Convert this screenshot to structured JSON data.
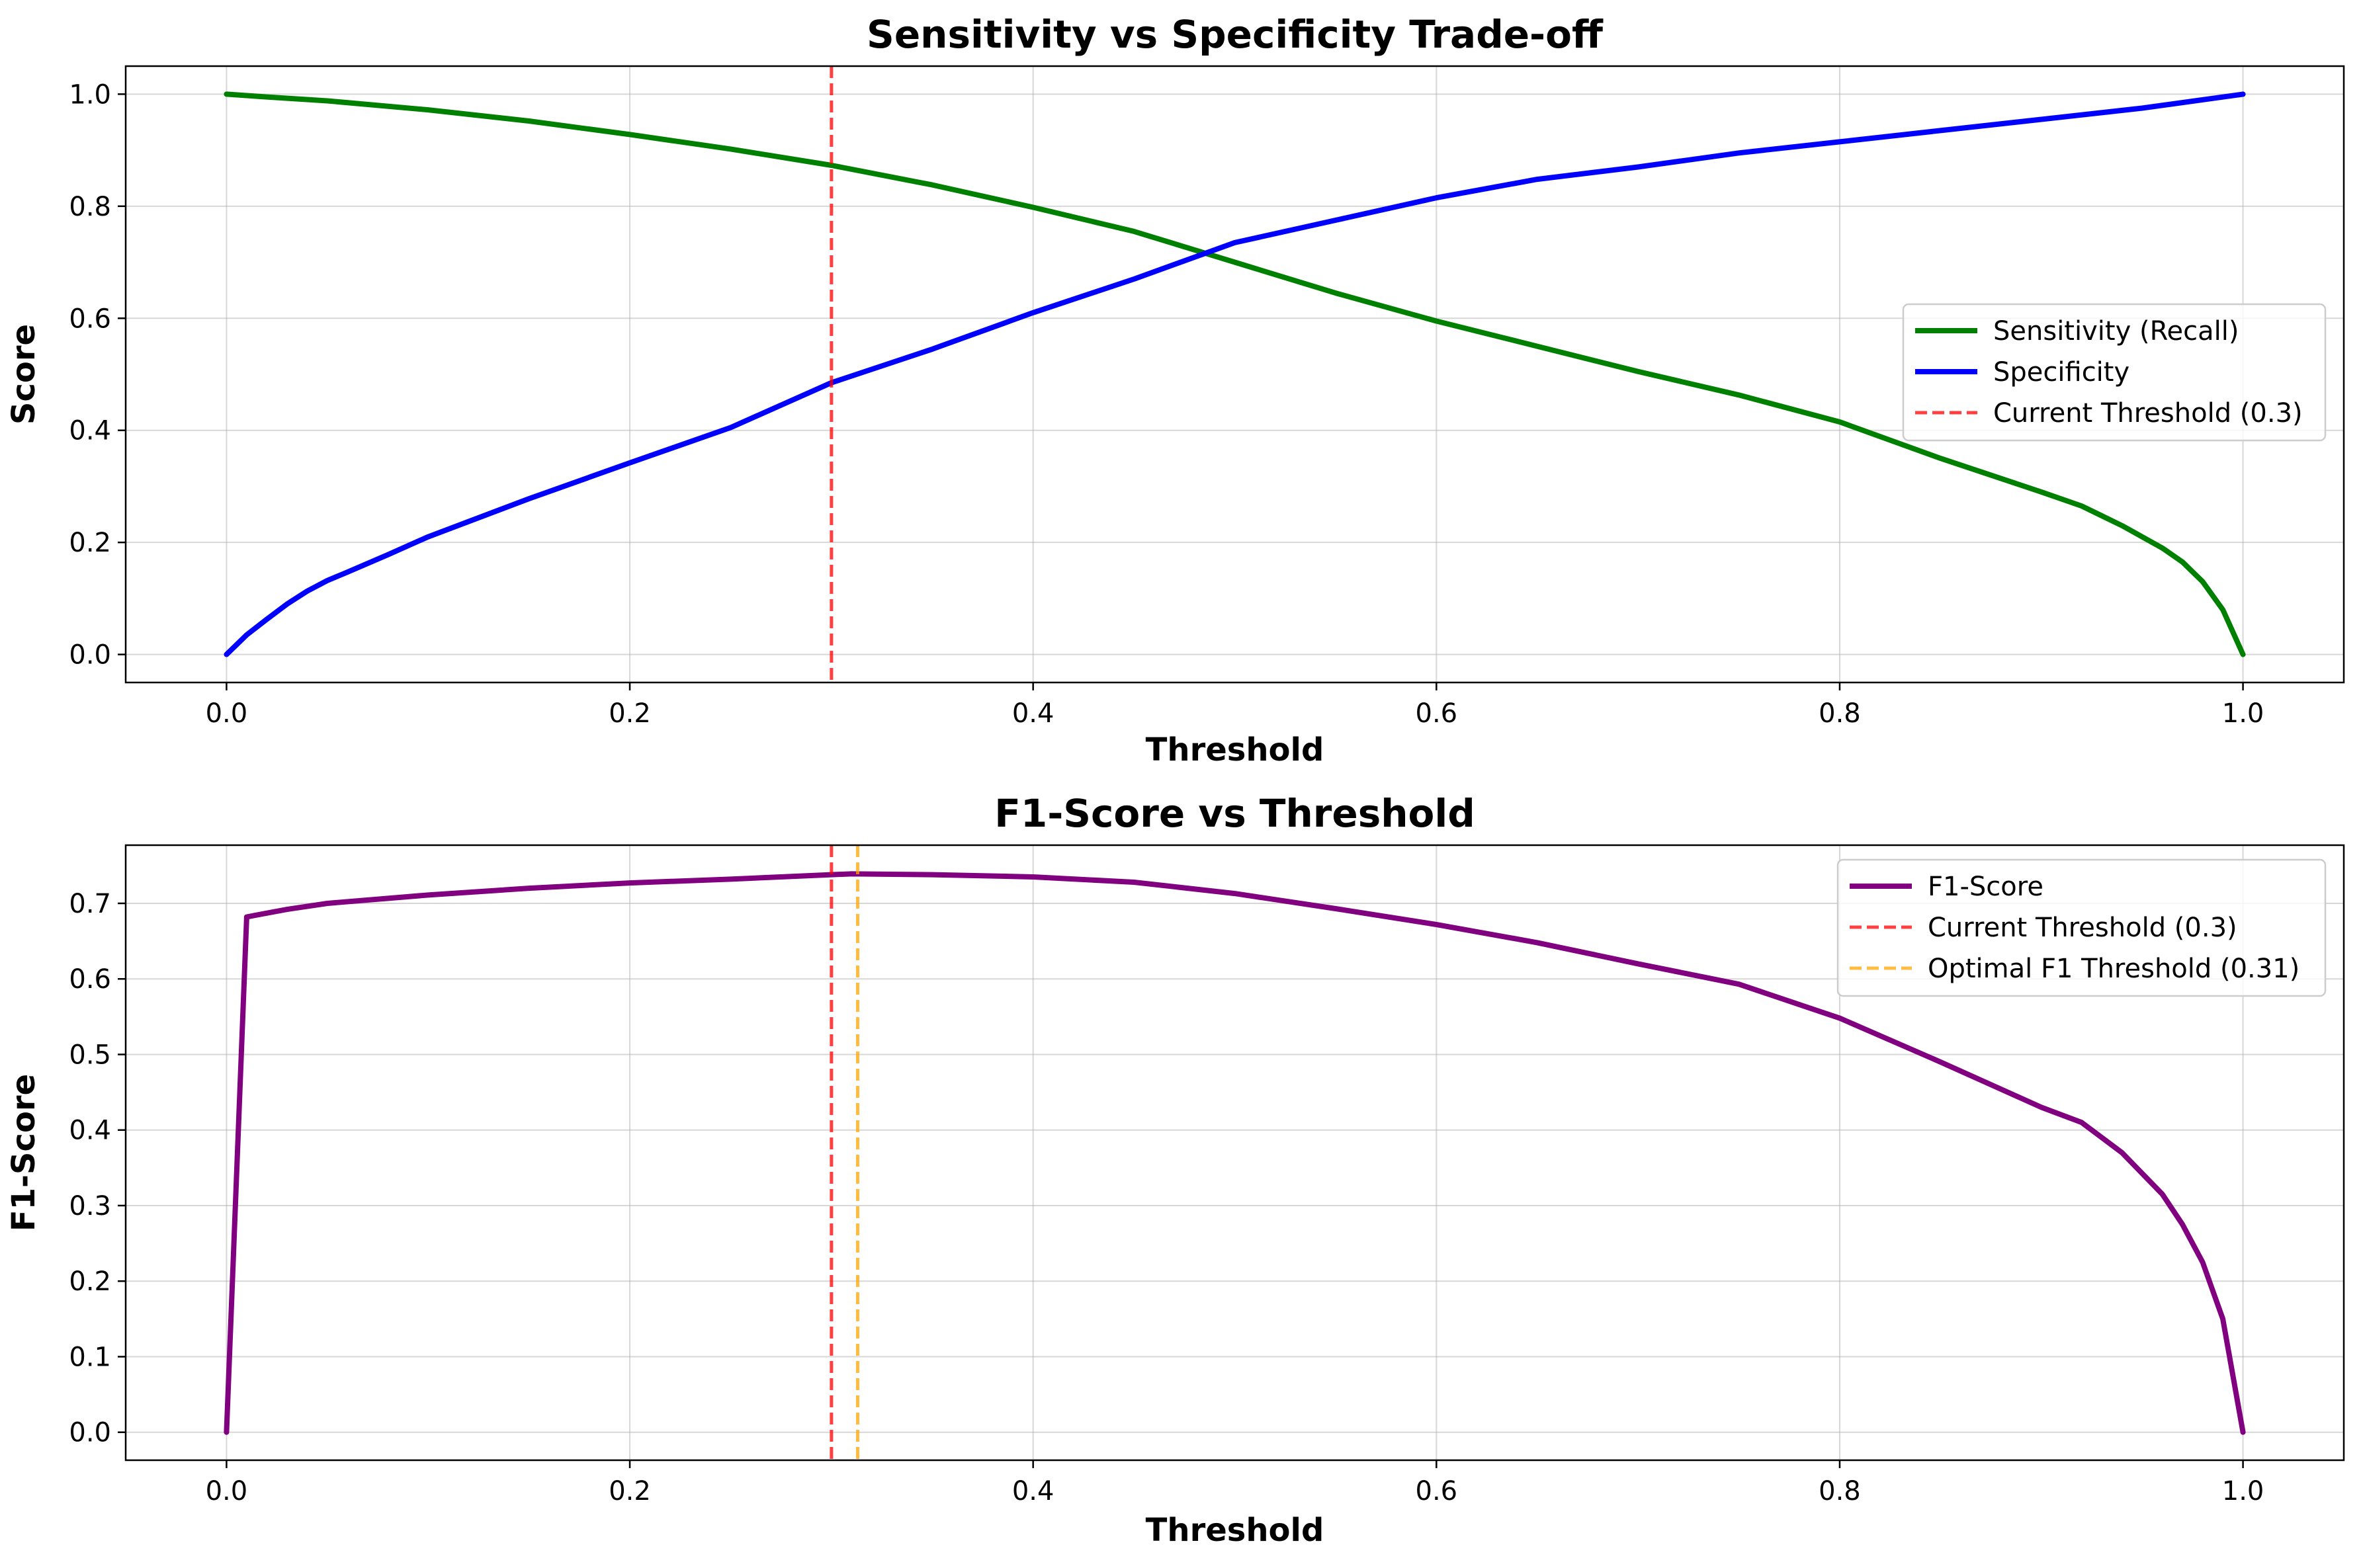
{
  "chart_data": [
    {
      "type": "line",
      "title": "Sensitivity vs Specificity Trade-off",
      "xlabel": "Threshold",
      "ylabel": "Score",
      "xlim": [
        -0.05,
        1.05
      ],
      "ylim": [
        -0.05,
        1.05
      ],
      "xticks": [
        0.0,
        0.2,
        0.4,
        0.6,
        0.8,
        1.0
      ],
      "xtick_labels": [
        "0.0",
        "0.2",
        "0.4",
        "0.6",
        "0.8",
        "1.0"
      ],
      "yticks": [
        0.0,
        0.2,
        0.4,
        0.6,
        0.8,
        1.0
      ],
      "ytick_labels": [
        "0.0",
        "0.2",
        "0.4",
        "0.6",
        "0.8",
        "1.0"
      ],
      "grid": true,
      "legend_position": "center-right",
      "series": [
        {
          "name": "Sensitivity (Recall)",
          "color": "#008000",
          "style": "solid",
          "x": [
            0.0,
            0.02,
            0.05,
            0.1,
            0.15,
            0.2,
            0.25,
            0.3,
            0.35,
            0.4,
            0.45,
            0.5,
            0.55,
            0.6,
            0.65,
            0.7,
            0.75,
            0.8,
            0.85,
            0.9,
            0.92,
            0.94,
            0.96,
            0.97,
            0.98,
            0.99,
            1.0
          ],
          "y": [
            1.0,
            0.995,
            0.988,
            0.972,
            0.952,
            0.928,
            0.902,
            0.873,
            0.838,
            0.798,
            0.755,
            0.7,
            0.645,
            0.595,
            0.55,
            0.505,
            0.463,
            0.415,
            0.35,
            0.29,
            0.265,
            0.23,
            0.19,
            0.165,
            0.13,
            0.08,
            0.0
          ]
        },
        {
          "name": "Specificity",
          "color": "#0000ff",
          "style": "solid",
          "x": [
            0.0,
            0.01,
            0.02,
            0.03,
            0.04,
            0.05,
            0.06,
            0.08,
            0.1,
            0.15,
            0.2,
            0.25,
            0.3,
            0.35,
            0.4,
            0.45,
            0.5,
            0.55,
            0.6,
            0.65,
            0.7,
            0.75,
            0.8,
            0.85,
            0.9,
            0.95,
            1.0
          ],
          "y": [
            0.0,
            0.035,
            0.063,
            0.09,
            0.113,
            0.132,
            0.147,
            0.178,
            0.21,
            0.278,
            0.342,
            0.405,
            0.485,
            0.545,
            0.61,
            0.67,
            0.735,
            0.775,
            0.815,
            0.848,
            0.87,
            0.895,
            0.915,
            0.935,
            0.955,
            0.975,
            1.0
          ]
        },
        {
          "name": "Current Threshold (0.3)",
          "color": "#ff0000",
          "style": "dashed",
          "vline": 0.3
        }
      ]
    },
    {
      "type": "line",
      "title": "F1-Score vs Threshold",
      "xlabel": "Threshold",
      "ylabel": "F1-Score",
      "xlim": [
        -0.05,
        1.05
      ],
      "ylim": [
        -0.037,
        0.777
      ],
      "xticks": [
        0.0,
        0.2,
        0.4,
        0.6,
        0.8,
        1.0
      ],
      "xtick_labels": [
        "0.0",
        "0.2",
        "0.4",
        "0.6",
        "0.8",
        "1.0"
      ],
      "yticks": [
        0.0,
        0.1,
        0.2,
        0.3,
        0.4,
        0.5,
        0.6,
        0.7
      ],
      "ytick_labels": [
        "0.0",
        "0.1",
        "0.2",
        "0.3",
        "0.4",
        "0.5",
        "0.6",
        "0.7"
      ],
      "grid": true,
      "legend_position": "upper-right",
      "series": [
        {
          "name": "F1-Score",
          "color": "#800080",
          "style": "solid",
          "x": [
            0.0,
            0.01,
            0.03,
            0.05,
            0.1,
            0.15,
            0.2,
            0.25,
            0.3,
            0.31,
            0.35,
            0.4,
            0.45,
            0.5,
            0.55,
            0.6,
            0.65,
            0.7,
            0.75,
            0.8,
            0.85,
            0.9,
            0.92,
            0.94,
            0.96,
            0.97,
            0.98,
            0.99,
            1.0
          ],
          "y": [
            0.0,
            0.682,
            0.692,
            0.7,
            0.711,
            0.72,
            0.727,
            0.732,
            0.738,
            0.739,
            0.738,
            0.735,
            0.728,
            0.713,
            0.693,
            0.672,
            0.648,
            0.62,
            0.593,
            0.548,
            0.49,
            0.43,
            0.41,
            0.37,
            0.315,
            0.275,
            0.225,
            0.15,
            0.0
          ]
        },
        {
          "name": "Current Threshold (0.3)",
          "color": "#ff0000",
          "style": "dashed",
          "vline": 0.3
        },
        {
          "name": "Optimal F1 Threshold (0.31)",
          "color": "#ffa500",
          "style": "dashed",
          "vline": 0.313
        }
      ]
    }
  ]
}
